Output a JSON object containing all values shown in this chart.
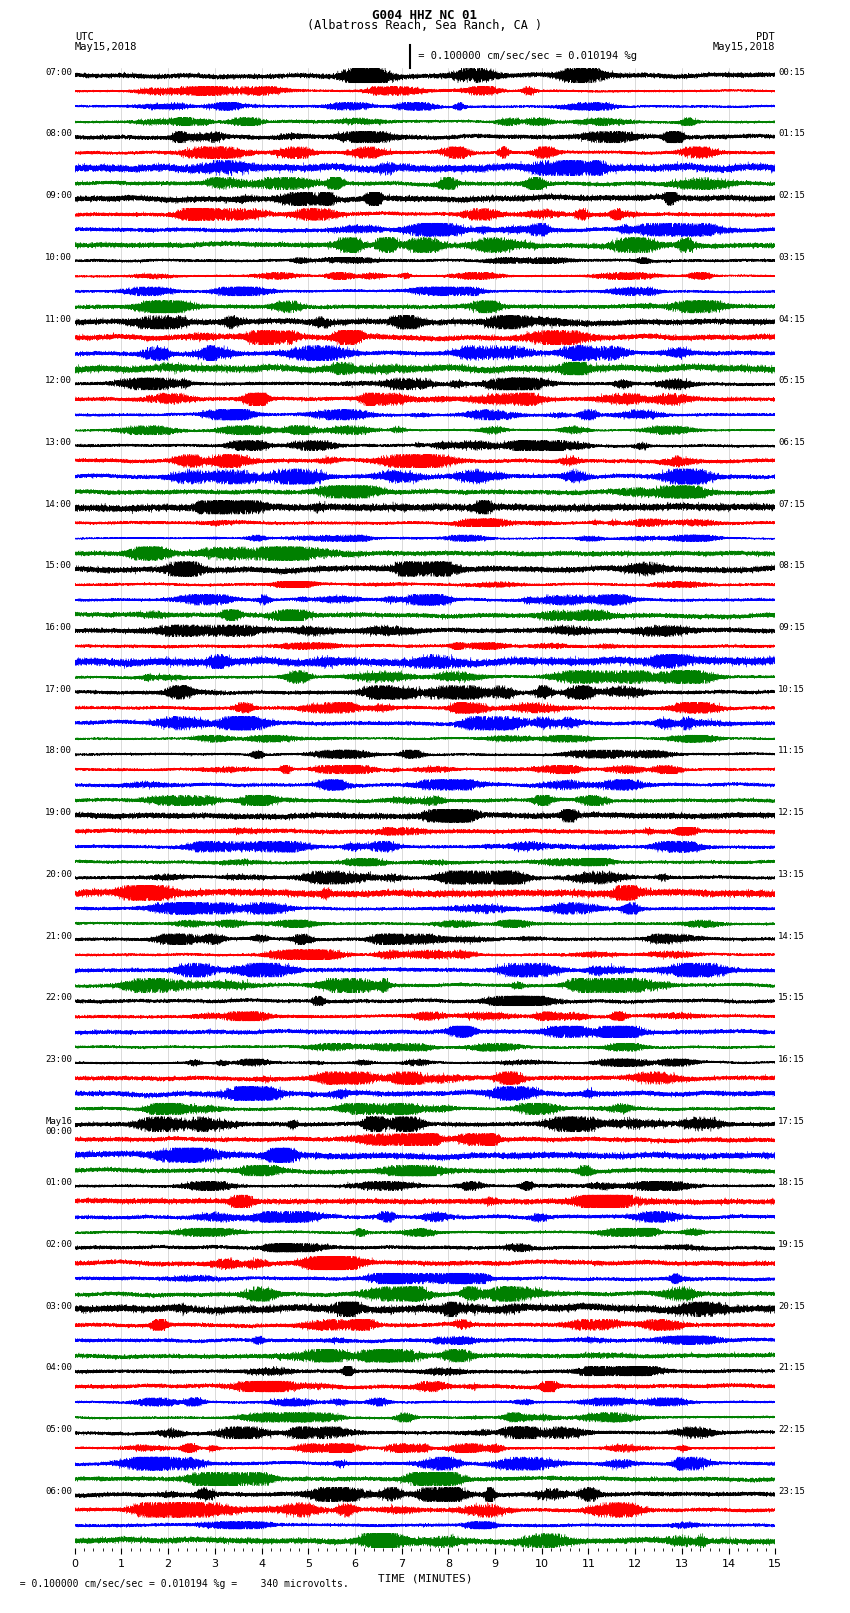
{
  "title_line1": "G004 HHZ NC 01",
  "title_line2": "(Albatross Reach, Sea Ranch, CA )",
  "scale_text": "= 0.100000 cm/sec/sec = 0.010194 %g",
  "footer_text": "= 0.100000 cm/sec/sec = 0.010194 %g =    340 microvolts.",
  "xlabel": "TIME (MINUTES)",
  "ylabel_left": "UTC",
  "ylabel_right": "PDT",
  "date_left": "May15,2018",
  "date_right": "May15,2018",
  "left_labels": [
    "07:00",
    "08:00",
    "09:00",
    "10:00",
    "11:00",
    "12:00",
    "13:00",
    "14:00",
    "15:00",
    "16:00",
    "17:00",
    "18:00",
    "19:00",
    "20:00",
    "21:00",
    "22:00",
    "23:00",
    "00:00",
    "01:00",
    "02:00",
    "03:00",
    "04:00",
    "05:00",
    "06:00"
  ],
  "right_labels": [
    "00:15",
    "01:15",
    "02:15",
    "03:15",
    "04:15",
    "05:15",
    "06:15",
    "07:15",
    "08:15",
    "09:15",
    "10:15",
    "11:15",
    "12:15",
    "13:15",
    "14:15",
    "15:15",
    "16:15",
    "17:15",
    "18:15",
    "19:15",
    "20:15",
    "21:15",
    "22:15",
    "23:15"
  ],
  "may16_row": 17,
  "colors": [
    "black",
    "red",
    "blue",
    "green"
  ],
  "background_color": "white",
  "num_rows": 24,
  "traces_per_row": 4,
  "minutes": 15,
  "figsize": [
    8.5,
    16.13
  ],
  "dpi": 100
}
